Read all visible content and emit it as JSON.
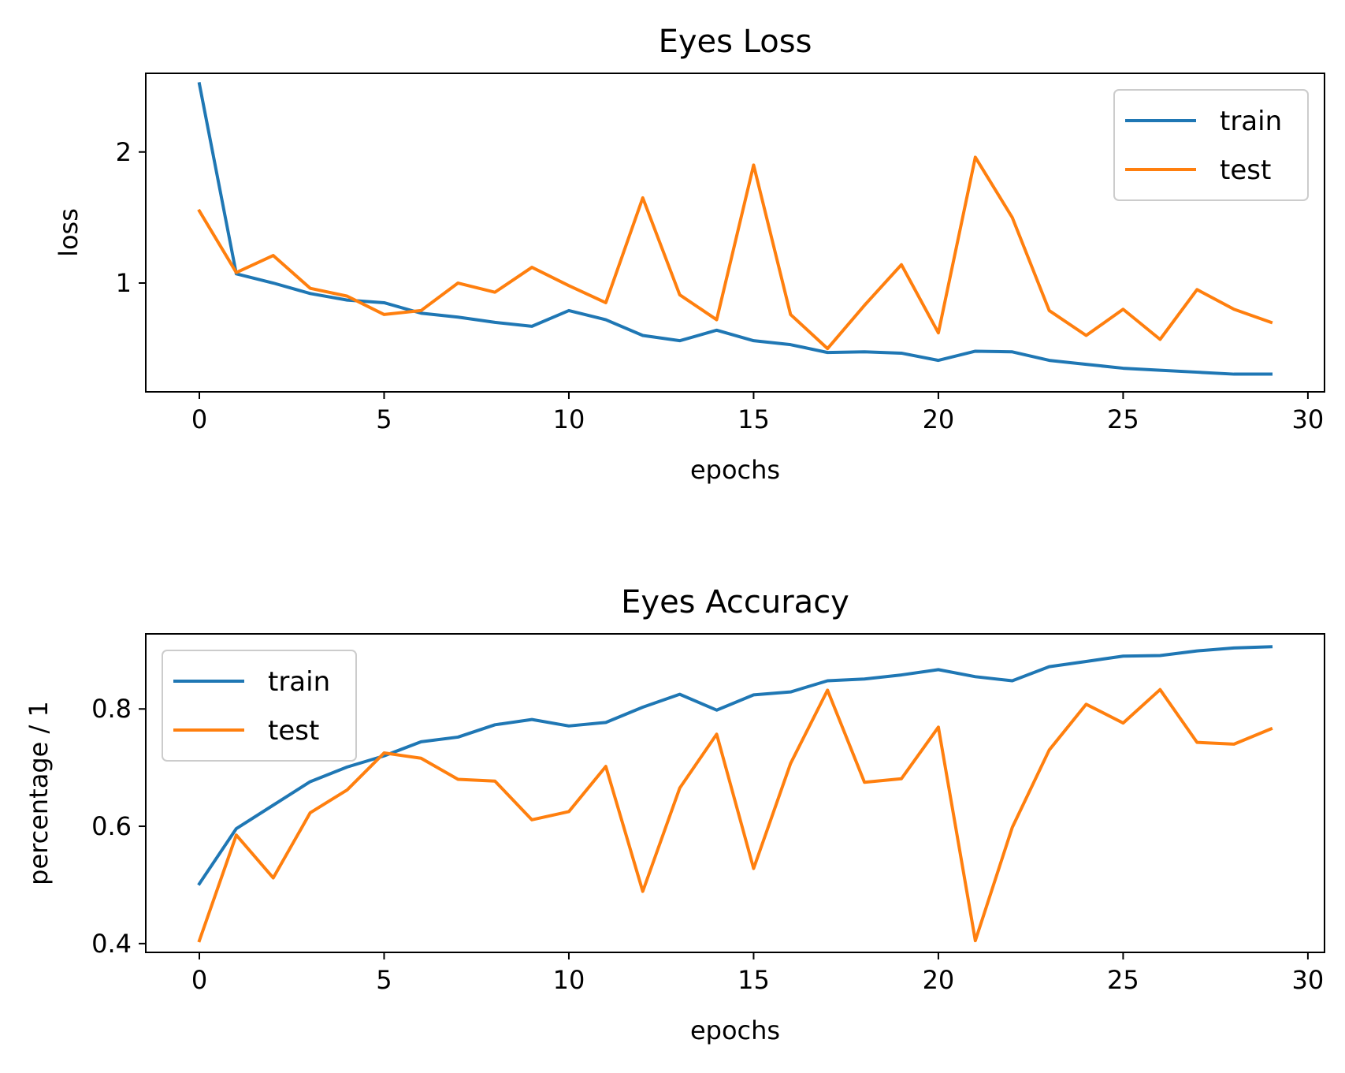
{
  "chart_data": [
    {
      "type": "line",
      "title": "Eyes Loss",
      "xlabel": "epochs",
      "ylabel": "loss",
      "xlim": [
        -1.45,
        30.45
      ],
      "ylim": [
        0.17,
        2.6
      ],
      "xticks": [
        0,
        5,
        10,
        15,
        20,
        25,
        30
      ],
      "yticks": [
        1,
        2
      ],
      "grid": false,
      "legend": "upper right",
      "x": [
        0,
        1,
        2,
        3,
        4,
        5,
        6,
        7,
        8,
        9,
        10,
        11,
        12,
        13,
        14,
        15,
        16,
        17,
        18,
        19,
        20,
        21,
        22,
        23,
        24,
        25,
        26,
        27,
        28,
        29
      ],
      "series": [
        {
          "name": "train",
          "color": "#1f77b4",
          "values": [
            2.52,
            1.07,
            1.0,
            0.92,
            0.87,
            0.85,
            0.77,
            0.74,
            0.7,
            0.67,
            0.79,
            0.72,
            0.6,
            0.56,
            0.64,
            0.56,
            0.53,
            0.47,
            0.475,
            0.465,
            0.41,
            0.48,
            0.475,
            0.41,
            0.38,
            0.35,
            0.335,
            0.32,
            0.305,
            0.305
          ]
        },
        {
          "name": "test",
          "color": "#ff7f0e",
          "values": [
            1.55,
            1.08,
            1.21,
            0.96,
            0.9,
            0.76,
            0.79,
            1.0,
            0.93,
            1.12,
            0.98,
            0.85,
            1.65,
            0.91,
            0.72,
            1.9,
            0.76,
            0.5,
            0.83,
            1.14,
            0.62,
            1.96,
            1.5,
            0.79,
            0.6,
            0.8,
            0.57,
            0.95,
            0.8,
            0.7
          ]
        }
      ]
    },
    {
      "type": "line",
      "title": "Eyes Accuracy",
      "xlabel": "epochs",
      "ylabel": "percentage / 1",
      "xlim": [
        -1.45,
        30.45
      ],
      "ylim": [
        0.385,
        0.928
      ],
      "xticks": [
        0,
        5,
        10,
        15,
        20,
        25,
        30
      ],
      "yticks": [
        0.4,
        0.6,
        0.8
      ],
      "grid": false,
      "legend": "upper left",
      "x": [
        0,
        1,
        2,
        3,
        4,
        5,
        6,
        7,
        8,
        9,
        10,
        11,
        12,
        13,
        14,
        15,
        16,
        17,
        18,
        19,
        20,
        21,
        22,
        23,
        24,
        25,
        26,
        27,
        28,
        29
      ],
      "series": [
        {
          "name": "train",
          "color": "#1f77b4",
          "values": [
            0.502,
            0.596,
            0.636,
            0.676,
            0.701,
            0.72,
            0.744,
            0.752,
            0.773,
            0.782,
            0.771,
            0.777,
            0.803,
            0.825,
            0.798,
            0.824,
            0.829,
            0.848,
            0.851,
            0.858,
            0.867,
            0.855,
            0.848,
            0.872,
            0.881,
            0.89,
            0.891,
            0.899,
            0.904,
            0.906
          ]
        },
        {
          "name": "test",
          "color": "#ff7f0e",
          "values": [
            0.405,
            0.585,
            0.512,
            0.623,
            0.662,
            0.725,
            0.716,
            0.68,
            0.677,
            0.611,
            0.625,
            0.702,
            0.489,
            0.665,
            0.757,
            0.528,
            0.707,
            0.832,
            0.675,
            0.681,
            0.769,
            0.405,
            0.598,
            0.73,
            0.808,
            0.776,
            0.833,
            0.743,
            0.74,
            0.766
          ]
        }
      ]
    }
  ]
}
